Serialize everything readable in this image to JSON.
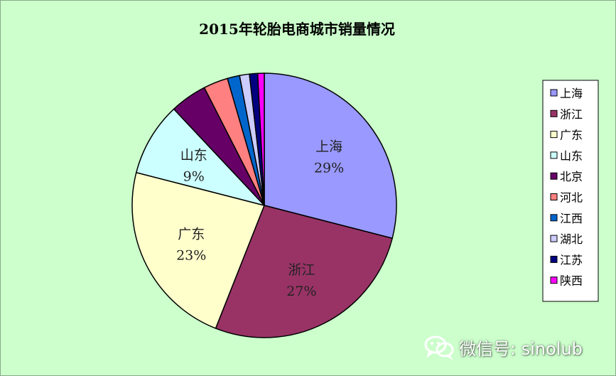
{
  "chart_data": {
    "type": "pie",
    "title": "2015年轮胎电商城市销量情况",
    "categories": [
      "上海",
      "浙江",
      "广东",
      "山东",
      "北京",
      "河北",
      "江西",
      "湖北",
      "江苏",
      "陕西"
    ],
    "values": [
      29,
      27,
      23,
      9,
      4.5,
      3,
      1.5,
      1.2,
      1,
      0.8
    ],
    "data_labels": [
      {
        "category": "上海",
        "text": "29%"
      },
      {
        "category": "浙江",
        "text": "27%"
      },
      {
        "category": "广东",
        "text": "23%"
      },
      {
        "category": "山东",
        "text": "9%"
      }
    ],
    "colors": [
      "#9999ff",
      "#993366",
      "#ffffcc",
      "#ccffff",
      "#660066",
      "#ff8080",
      "#0066cc",
      "#ccccff",
      "#000080",
      "#ff00ff"
    ],
    "legend": {
      "placement": "right",
      "entries": [
        "上海",
        "浙江",
        "广东",
        "山东",
        "北京",
        "河北",
        "江西",
        "湖北",
        "江苏",
        "陕西"
      ]
    },
    "background": "#ccffcc"
  },
  "watermark": {
    "text": "微信号: sinolub",
    "icon": "wechat-icon"
  }
}
